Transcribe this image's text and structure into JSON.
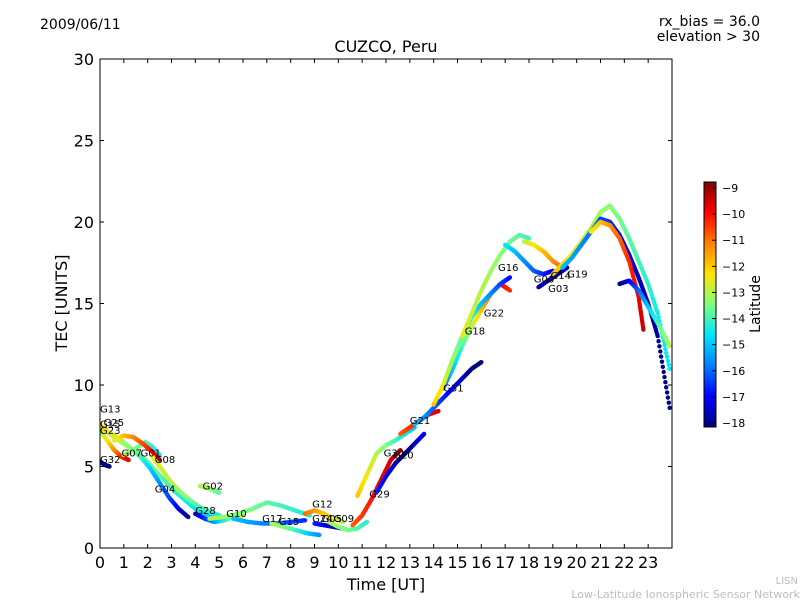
{
  "header": {
    "date": "2009/06/11",
    "rx_bias": "rx_bias = 36.0",
    "elevation": "elevation > 30"
  },
  "footer": {
    "line1": "LISN",
    "line2": "Low-Latitude Ionospheric Sensor Network"
  },
  "chart_data": {
    "type": "scatter",
    "title": "CUZCO, Peru",
    "xlabel": "Time [UT]",
    "ylabel": "TEC [UNITS]",
    "xlim": [
      0,
      24
    ],
    "ylim": [
      0,
      30
    ],
    "xticks": [
      0,
      1,
      2,
      3,
      4,
      5,
      6,
      7,
      8,
      9,
      10,
      11,
      12,
      13,
      14,
      15,
      16,
      17,
      18,
      19,
      20,
      21,
      22,
      23
    ],
    "yticks": [
      0,
      5,
      10,
      15,
      20,
      25,
      30
    ],
    "grid": false,
    "colorbar": {
      "label": "Latitude",
      "range": [
        -18,
        -9
      ],
      "ticks": [
        -9,
        -10,
        -11,
        -12,
        -13,
        -14,
        -15,
        -16,
        -17,
        -18
      ],
      "colormap": "jet",
      "colors": [
        "#00007f",
        "#0000ff",
        "#007fff",
        "#00e5ff",
        "#7fff7f",
        "#ffe500",
        "#ff7f00",
        "#ff0000",
        "#7f0000"
      ]
    },
    "series": [
      {
        "name": "G13",
        "x": [
          0.0,
          0.4,
          0.8,
          1.2,
          1.6,
          2.0,
          2.4,
          2.8,
          3.2,
          3.6,
          4.0,
          4.4,
          4.8
        ],
        "y": [
          7.6,
          7.0,
          6.6,
          6.2,
          5.8,
          5.3,
          4.6,
          4.0,
          3.4,
          2.9,
          2.4,
          2.1,
          1.9
        ],
        "lat": [
          -12.5,
          -12.8,
          -13.0,
          -13.2,
          -13.4,
          -13.6,
          -13.8,
          -14.0,
          -14.2,
          -14.4,
          -14.6,
          -14.8,
          -15.0
        ]
      },
      {
        "name": "G25",
        "x": [
          0.1,
          0.5,
          0.9,
          1.3,
          1.7,
          2.1,
          2.5,
          2.9,
          3.3,
          3.7
        ],
        "y": [
          7.3,
          7.0,
          6.6,
          6.1,
          5.6,
          4.9,
          4.0,
          3.1,
          2.4,
          1.9
        ],
        "lat": [
          -12.0,
          -12.5,
          -13.0,
          -13.5,
          -14.0,
          -14.8,
          -15.5,
          -16.2,
          -17.0,
          -17.8
        ]
      },
      {
        "name": "G23",
        "x": [
          0.0,
          0.3,
          0.6,
          0.9,
          1.2
        ],
        "y": [
          7.2,
          6.6,
          6.0,
          5.6,
          5.4
        ],
        "lat": [
          -13.5,
          -12.5,
          -11.5,
          -10.5,
          -10.0
        ]
      },
      {
        "name": "G32",
        "x": [
          0.0,
          0.2,
          0.4
        ],
        "y": [
          5.3,
          5.1,
          5.0
        ],
        "lat": [
          -17.5,
          -17.8,
          -18.0
        ]
      },
      {
        "name": "G07",
        "x": [
          1.0,
          1.3,
          1.6,
          1.9,
          2.2,
          2.5
        ],
        "y": [
          5.7,
          5.9,
          6.2,
          6.5,
          6.2,
          5.7
        ],
        "lat": [
          -13.0,
          -13.3,
          -13.6,
          -13.9,
          -14.2,
          -14.5
        ]
      },
      {
        "name": "G08",
        "x": [
          0.6,
          1.0,
          1.4,
          1.8,
          2.2,
          2.5
        ],
        "y": [
          6.6,
          6.9,
          6.8,
          6.4,
          5.9,
          5.4
        ],
        "lat": [
          -12.8,
          -12.0,
          -11.4,
          -10.8,
          -10.2,
          -9.6
        ]
      },
      {
        "name": "G04",
        "x": [
          2.2,
          2.6,
          3.0,
          3.4,
          3.8,
          4.2,
          4.6,
          5.0
        ],
        "y": [
          5.6,
          4.8,
          4.0,
          3.4,
          2.9,
          2.5,
          2.2,
          2.0
        ],
        "lat": [
          -12.5,
          -12.8,
          -13.0,
          -13.3,
          -13.6,
          -13.9,
          -14.2,
          -14.5
        ]
      },
      {
        "name": "G02",
        "x": [
          4.2,
          4.5,
          4.8,
          5.0
        ],
        "y": [
          3.8,
          3.7,
          3.5,
          3.4
        ],
        "lat": [
          -13.0,
          -13.2,
          -13.5,
          -13.8
        ]
      },
      {
        "name": "G28",
        "x": [
          4.0,
          4.4,
          4.8,
          5.2,
          5.6,
          6.0
        ],
        "y": [
          2.1,
          1.8,
          1.6,
          1.7,
          1.9,
          2.0
        ],
        "lat": [
          -17.5,
          -16.5,
          -15.5,
          -14.5,
          -13.5,
          -12.8
        ]
      },
      {
        "name": "G10",
        "x": [
          4.6,
          5.2,
          5.8,
          6.4,
          7.0,
          7.6,
          8.2,
          8.8
        ],
        "y": [
          1.8,
          1.9,
          2.1,
          2.4,
          2.8,
          2.6,
          2.3,
          2.0
        ],
        "lat": [
          -13.0,
          -13.2,
          -13.4,
          -13.6,
          -13.8,
          -14.0,
          -14.2,
          -14.4
        ]
      },
      {
        "name": "G17",
        "x": [
          5.6,
          6.2,
          6.8,
          7.4,
          8.0,
          8.6
        ],
        "y": [
          1.8,
          1.6,
          1.5,
          1.5,
          1.6,
          1.7
        ],
        "lat": [
          -15.0,
          -15.3,
          -15.6,
          -15.9,
          -16.2,
          -16.5
        ]
      },
      {
        "name": "G15",
        "x": [
          7.2,
          7.7,
          8.2,
          8.7,
          9.2
        ],
        "y": [
          1.5,
          1.3,
          1.1,
          0.9,
          0.8
        ],
        "lat": [
          -13.0,
          -13.5,
          -14.0,
          -14.8,
          -15.5
        ]
      },
      {
        "name": "G12",
        "x": [
          8.6,
          9.0,
          9.4,
          9.8,
          10.2
        ],
        "y": [
          2.1,
          2.3,
          2.1,
          1.8,
          1.6
        ],
        "lat": [
          -11.0,
          -11.5,
          -12.0,
          -12.5,
          -13.0
        ]
      },
      {
        "name": "G24",
        "x": [
          9.0,
          9.4,
          9.8,
          10.2
        ],
        "y": [
          1.5,
          1.4,
          1.3,
          1.2
        ],
        "lat": [
          -16.5,
          -17.0,
          -17.5,
          -18.0
        ]
      },
      {
        "name": "G09",
        "x": [
          9.6,
          10.0,
          10.4,
          10.8,
          11.2
        ],
        "y": [
          1.6,
          1.3,
          1.1,
          1.2,
          1.6
        ],
        "lat": [
          -13.0,
          -13.3,
          -13.6,
          -13.9,
          -14.2
        ]
      },
      {
        "name": "G29",
        "x": [
          10.6,
          11.0,
          11.4,
          11.8,
          12.2,
          12.6
        ],
        "y": [
          1.4,
          2.0,
          3.0,
          4.2,
          5.4,
          6.0
        ],
        "lat": [
          -11.0,
          -10.6,
          -10.3,
          -10.0,
          -9.8,
          -9.6
        ]
      },
      {
        "name": "G30",
        "x": [
          10.8,
          11.2,
          11.6,
          12.0,
          12.4,
          12.8,
          13.2
        ],
        "y": [
          3.2,
          4.5,
          5.8,
          6.3,
          6.6,
          7.0,
          7.4
        ],
        "lat": [
          -12.0,
          -12.5,
          -13.0,
          -13.5,
          -14.0,
          -14.5,
          -15.0
        ]
      },
      {
        "name": "G20",
        "x": [
          11.6,
          12.0,
          12.4,
          12.8,
          13.2,
          13.6
        ],
        "y": [
          3.4,
          4.4,
          5.2,
          5.8,
          6.4,
          7.0
        ],
        "lat": [
          -16.5,
          -17.0,
          -17.5,
          -18.0,
          -17.5,
          -17.0
        ]
      },
      {
        "name": "G21",
        "x": [
          12.6,
          13.0,
          13.4,
          13.8,
          14.2
        ],
        "y": [
          7.0,
          7.4,
          7.8,
          8.2,
          8.4
        ],
        "lat": [
          -11.0,
          -10.6,
          -10.3,
          -10.0,
          -9.8
        ]
      },
      {
        "name": "G31",
        "x": [
          13.2,
          13.6,
          14.0,
          14.4,
          14.8,
          15.2,
          15.6,
          16.0
        ],
        "y": [
          7.6,
          8.0,
          8.6,
          9.2,
          9.8,
          10.4,
          11.0,
          11.4
        ],
        "lat": [
          -15.0,
          -15.5,
          -16.0,
          -16.5,
          -17.0,
          -17.5,
          -18.0,
          -18.0
        ]
      },
      {
        "name": "G18",
        "x": [
          14.4,
          14.8,
          15.2,
          15.6,
          16.0,
          16.4,
          16.8,
          17.2
        ],
        "y": [
          9.8,
          11.0,
          12.4,
          13.6,
          14.6,
          15.6,
          16.2,
          15.8
        ],
        "lat": [
          -16.0,
          -15.0,
          -14.0,
          -13.0,
          -12.0,
          -11.0,
          -10.0,
          -10.5
        ]
      },
      {
        "name": "G22",
        "x": [
          14.0,
          14.4,
          14.8,
          15.2,
          15.6,
          16.0,
          16.4,
          16.8,
          17.2
        ],
        "y": [
          8.8,
          10.0,
          11.6,
          13.0,
          14.2,
          15.0,
          15.6,
          16.2,
          16.6
        ],
        "lat": [
          -12.0,
          -12.6,
          -13.2,
          -13.8,
          -14.4,
          -15.0,
          -15.6,
          -16.2,
          -16.8
        ]
      },
      {
        "name": "G16",
        "x": [
          15.2,
          15.6,
          16.0,
          16.4,
          16.8,
          17.2,
          17.6,
          18.0
        ],
        "y": [
          13.0,
          14.4,
          15.8,
          17.0,
          18.0,
          18.8,
          19.2,
          19.0
        ],
        "lat": [
          -12.5,
          -12.8,
          -13.0,
          -13.2,
          -13.4,
          -13.6,
          -13.8,
          -14.0
        ]
      },
      {
        "name": "G06",
        "x": [
          17.0,
          17.4,
          17.8,
          18.2,
          18.6,
          19.0
        ],
        "y": [
          18.6,
          18.2,
          17.6,
          17.0,
          16.8,
          17.0
        ],
        "lat": [
          -14.5,
          -15.0,
          -15.5,
          -16.0,
          -16.5,
          -17.0
        ]
      },
      {
        "name": "G14",
        "x": [
          17.8,
          18.2,
          18.6,
          19.0,
          19.4
        ],
        "y": [
          18.8,
          18.6,
          18.2,
          17.6,
          17.2
        ],
        "lat": [
          -13.0,
          -12.5,
          -12.0,
          -11.5,
          -11.0
        ]
      },
      {
        "name": "G03",
        "x": [
          18.4,
          18.8,
          19.2,
          19.6
        ],
        "y": [
          16.0,
          16.4,
          16.8,
          17.2
        ],
        "lat": [
          -17.5,
          -17.8,
          -18.0,
          -17.5
        ]
      },
      {
        "name": "G19",
        "x": [
          19.0,
          19.4,
          19.8,
          20.2,
          20.6,
          21.0,
          21.4,
          21.8,
          22.2,
          22.6,
          23.0,
          23.4,
          23.9
        ],
        "y": [
          16.8,
          17.4,
          18.0,
          18.8,
          19.6,
          20.6,
          21.0,
          20.2,
          19.0,
          17.6,
          16.2,
          14.4,
          11.0
        ],
        "lat": [
          -12.0,
          -12.2,
          -12.5,
          -12.8,
          -13.0,
          -13.2,
          -13.4,
          -13.6,
          -13.8,
          -14.0,
          -14.2,
          -14.4,
          -14.6
        ]
      },
      {
        "name": "",
        "x": [
          19.4,
          19.8,
          20.2,
          20.6,
          21.0,
          21.4,
          21.8,
          22.2,
          22.6,
          23.0,
          23.4,
          23.9
        ],
        "y": [
          17.2,
          17.8,
          18.6,
          19.4,
          20.2,
          20.0,
          19.2,
          18.0,
          16.6,
          15.0,
          13.0,
          8.6
        ],
        "lat": [
          -15.0,
          -15.3,
          -15.6,
          -15.9,
          -16.2,
          -16.5,
          -16.8,
          -17.1,
          -17.4,
          -17.6,
          -17.8,
          -18.0
        ]
      },
      {
        "name": "",
        "x": [
          20.6,
          21.0,
          21.4,
          21.8,
          22.2,
          22.6,
          22.8
        ],
        "y": [
          19.4,
          20.0,
          19.8,
          19.0,
          17.6,
          15.4,
          13.4
        ],
        "lat": [
          -12.5,
          -12.0,
          -11.5,
          -11.0,
          -10.5,
          -10.0,
          -9.6
        ]
      },
      {
        "name": "",
        "x": [
          21.8,
          22.2,
          22.6,
          23.0,
          23.4,
          23.9
        ],
        "y": [
          16.2,
          16.4,
          15.8,
          14.8,
          13.8,
          12.4
        ],
        "lat": [
          -18.0,
          -17.0,
          -16.0,
          -15.0,
          -14.0,
          -13.0
        ]
      }
    ],
    "labels": [
      {
        "text": "G13",
        "x": 0.0,
        "y": 8.3
      },
      {
        "text": "G25",
        "x": 0.15,
        "y": 7.5
      },
      {
        "text": "G15",
        "x": 0.0,
        "y": 7.4
      },
      {
        "text": "G23",
        "x": 0.0,
        "y": 7.0
      },
      {
        "text": "G32",
        "x": 0.0,
        "y": 5.2
      },
      {
        "text": "G07",
        "x": 0.9,
        "y": 5.6
      },
      {
        "text": "G01",
        "x": 1.7,
        "y": 5.6
      },
      {
        "text": "G08",
        "x": 2.3,
        "y": 5.2
      },
      {
        "text": "G04",
        "x": 2.3,
        "y": 3.4
      },
      {
        "text": "G02",
        "x": 4.3,
        "y": 3.6
      },
      {
        "text": "G28",
        "x": 4.0,
        "y": 2.1
      },
      {
        "text": "G10",
        "x": 5.3,
        "y": 1.9
      },
      {
        "text": "G17",
        "x": 6.8,
        "y": 1.6
      },
      {
        "text": "G15",
        "x": 7.5,
        "y": 1.4
      },
      {
        "text": "G12",
        "x": 8.9,
        "y": 2.5
      },
      {
        "text": "G24",
        "x": 8.9,
        "y": 1.6
      },
      {
        "text": "G05",
        "x": 9.3,
        "y": 1.6
      },
      {
        "text": "G09",
        "x": 9.8,
        "y": 1.6
      },
      {
        "text": "G29",
        "x": 11.3,
        "y": 3.1
      },
      {
        "text": "G30",
        "x": 11.9,
        "y": 5.6
      },
      {
        "text": "G20",
        "x": 12.3,
        "y": 5.5
      },
      {
        "text": "G21",
        "x": 13.0,
        "y": 7.6
      },
      {
        "text": "G31",
        "x": 14.4,
        "y": 9.6
      },
      {
        "text": "G18",
        "x": 15.3,
        "y": 13.1
      },
      {
        "text": "G22",
        "x": 16.1,
        "y": 14.2
      },
      {
        "text": "G16",
        "x": 16.7,
        "y": 17.0
      },
      {
        "text": "G06",
        "x": 18.2,
        "y": 16.3
      },
      {
        "text": "G14",
        "x": 18.9,
        "y": 16.5
      },
      {
        "text": "G03",
        "x": 18.8,
        "y": 15.7
      },
      {
        "text": "G19",
        "x": 19.6,
        "y": 16.6
      }
    ]
  }
}
